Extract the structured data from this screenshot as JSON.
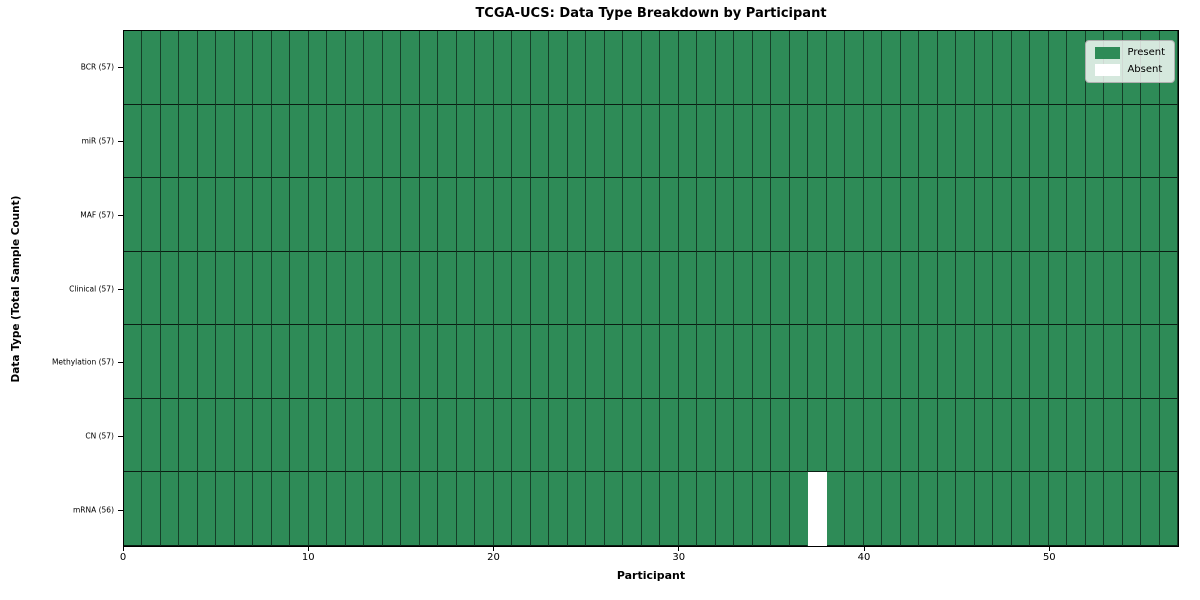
{
  "title": "TCGA-UCS: Data Type Breakdown by Participant",
  "xlabel": "Participant",
  "ylabel": "Data Type (Total Sample Count)",
  "legend": [
    {
      "label": "Present",
      "icon": "present-swatch-icon",
      "color": "#2e8b57"
    },
    {
      "label": "Absent",
      "icon": "absent-swatch-icon",
      "color": "#ffffff"
    }
  ],
  "chart_data": {
    "type": "heatmap",
    "title": "TCGA-UCS: Data Type Breakdown by Participant",
    "xlabel": "Participant",
    "ylabel": "Data Type (Total Sample Count)",
    "n_participants": 57,
    "x_ticks": [
      0,
      10,
      20,
      30,
      40,
      50
    ],
    "rows": [
      {
        "label": "BCR (57)",
        "data_type": "BCR",
        "total": 57,
        "absent_participants": []
      },
      {
        "label": "miR (57)",
        "data_type": "miR",
        "total": 57,
        "absent_participants": []
      },
      {
        "label": "MAF (57)",
        "data_type": "MAF",
        "total": 57,
        "absent_participants": []
      },
      {
        "label": "Clinical (57)",
        "data_type": "Clinical",
        "total": 57,
        "absent_participants": []
      },
      {
        "label": "Methylation (57)",
        "data_type": "Methylation",
        "total": 57,
        "absent_participants": []
      },
      {
        "label": "CN (57)",
        "data_type": "CN",
        "total": 57,
        "absent_participants": []
      },
      {
        "label": "mRNA (56)",
        "data_type": "mRNA",
        "total": 56,
        "absent_participants": [
          37
        ]
      }
    ],
    "legend_entries": [
      "Present",
      "Absent"
    ],
    "legend_position": "upper right",
    "grid": true,
    "colors": {
      "present": "#2e8b57",
      "absent": "#ffffff",
      "cell_edge": "rgba(0,0,0,0.55)"
    }
  }
}
